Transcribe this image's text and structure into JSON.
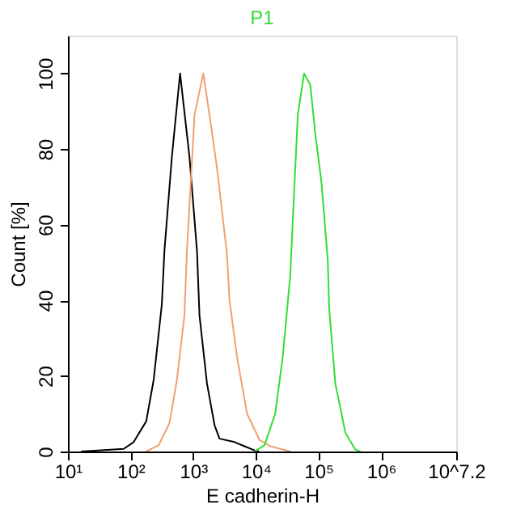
{
  "chart_data": {
    "type": "line",
    "title": "P1",
    "xlabel": "E cadherin-H",
    "ylabel": "Count [%]",
    "log": "x",
    "xlim": [
      10,
      15848932
    ],
    "xticks": [
      {
        "value": 10,
        "label": "10¹"
      },
      {
        "value": 100,
        "label": "10²"
      },
      {
        "value": 1000,
        "label": "10³"
      },
      {
        "value": 10000,
        "label": "10⁴"
      },
      {
        "value": 100000,
        "label": "10⁵"
      },
      {
        "value": 1000000,
        "label": "10⁶"
      },
      {
        "value": 15848932,
        "label": "10^7.2"
      }
    ],
    "ylim": [
      0,
      110
    ],
    "yticks": [
      0,
      20,
      40,
      60,
      80,
      100
    ],
    "grid": false,
    "marker": "none",
    "line_style": "solid",
    "series": [
      {
        "color": "#000000",
        "x": [
          16.2,
          77.6,
          112,
          178,
          234,
          316,
          347,
          457,
          617,
          871,
          1150,
          1260,
          1660,
          2190,
          2630,
          4570,
          6610,
          9550,
          11200
        ],
        "values": [
          0,
          0.7,
          2.5,
          8,
          19,
          39,
          53,
          78,
          100,
          78,
          53,
          36,
          18,
          7,
          3.4,
          2.5,
          1.4,
          0.3,
          0
        ]
      },
      {
        "color": "#f0a070",
        "x": [
          178,
          282,
          417,
          550,
          724,
          794,
          1050,
          1450,
          1820,
          2400,
          3470,
          3800,
          5010,
          7240,
          11500,
          17000,
          35500
        ],
        "values": [
          0,
          1.7,
          7.5,
          19,
          36,
          53,
          89,
          100,
          89,
          75,
          52,
          40,
          25,
          10,
          3,
          1.4,
          0
        ]
      },
      {
        "color": "#33dd33",
        "x": [
          9550,
          13800,
          20400,
          26900,
          35500,
          38900,
          46800,
          58900,
          74100,
          89100,
          112000,
          141000,
          148000,
          186000,
          269000,
          389000,
          468000
        ],
        "values": [
          0,
          1.7,
          10,
          25,
          46.7,
          61,
          89,
          100,
          97,
          84,
          71,
          50.6,
          38,
          18,
          5,
          0.5,
          0
        ]
      }
    ]
  }
}
